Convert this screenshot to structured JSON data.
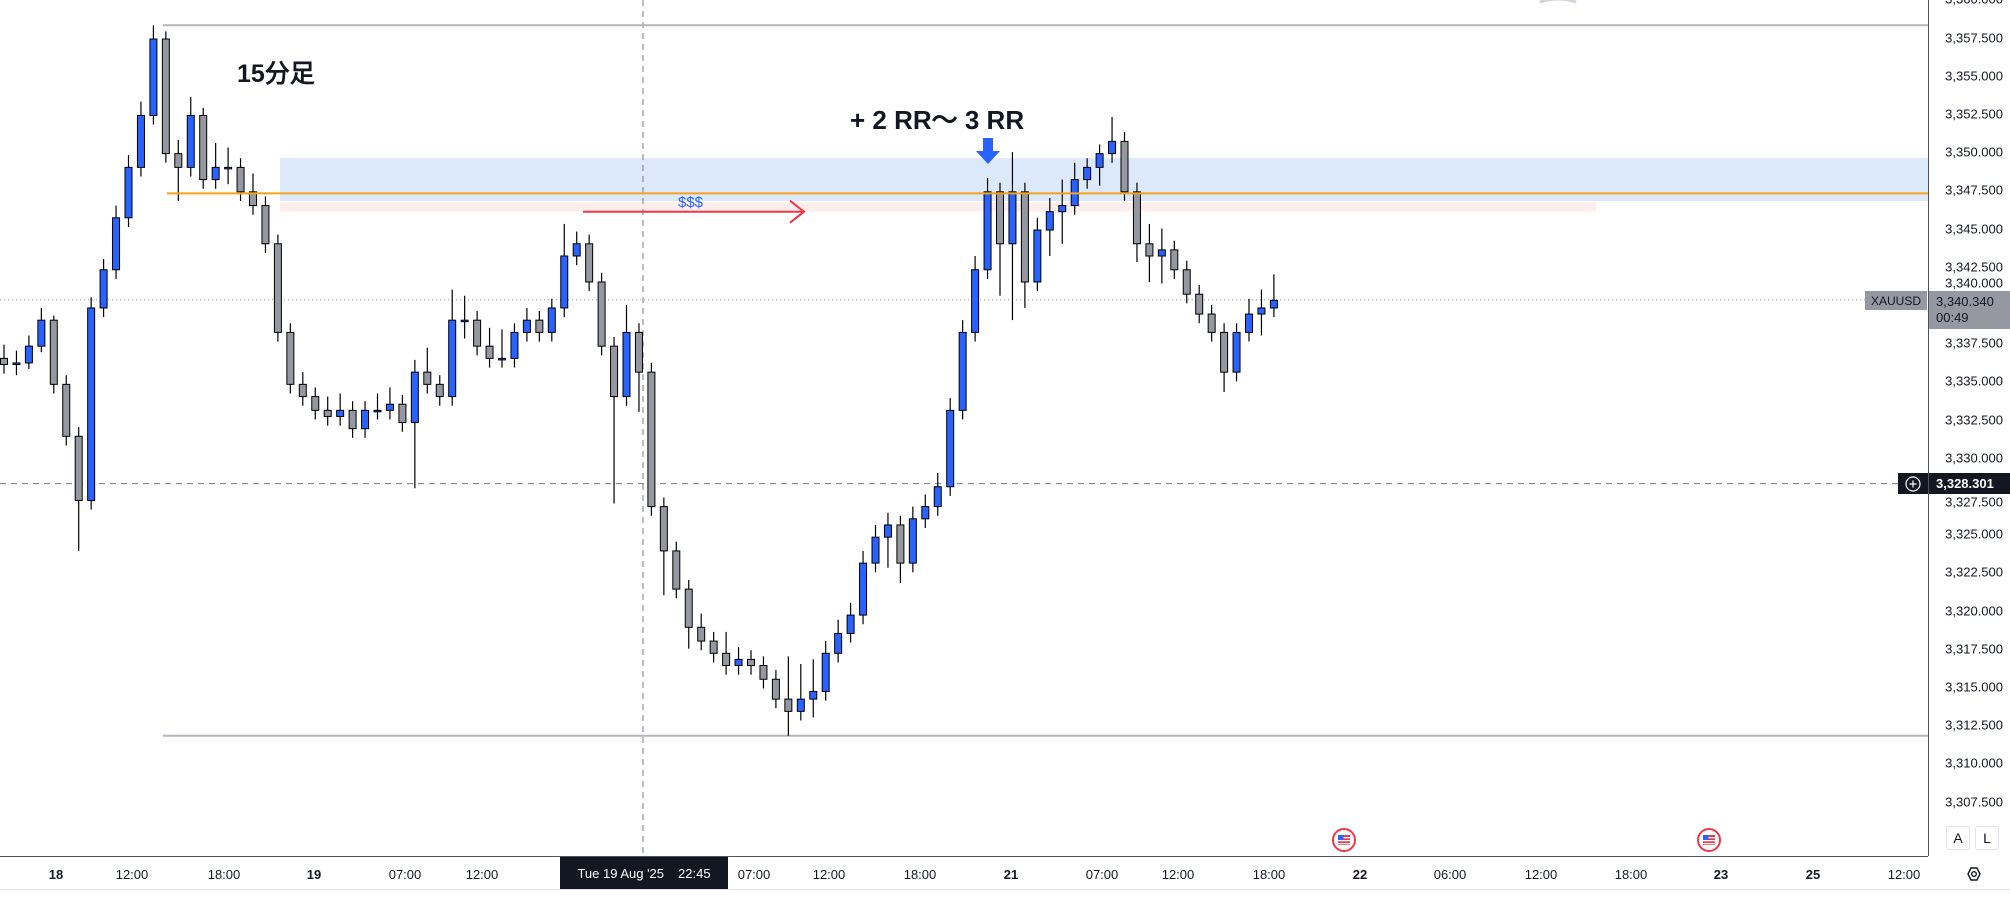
{
  "chart_data": {
    "type": "candlestick",
    "symbol": "XAUUSD",
    "timeframe_label": "15分足",
    "ylim": [
      3306,
      3360
    ],
    "y_ticks": [
      "3,360.000",
      "3,357.500",
      "3,355.000",
      "3,352.500",
      "3,350.000",
      "3,347.500",
      "3,345.000",
      "3,342.500",
      "3,340.000",
      "3,337.500",
      "3,335.000",
      "3,332.500",
      "3,330.000",
      "3,327.500",
      "3,325.000",
      "3,322.500",
      "3,320.000",
      "3,317.500",
      "3,315.000",
      "3,312.500",
      "3,310.000",
      "3,307.500"
    ],
    "x_ticks": [
      {
        "label": "18",
        "day": true
      },
      {
        "label": "12:00"
      },
      {
        "label": "18:00"
      },
      {
        "label": "19",
        "day": true
      },
      {
        "label": "07:00"
      },
      {
        "label": "12:00"
      },
      {
        "label": "07:00"
      },
      {
        "label": "12:00"
      },
      {
        "label": "18:00"
      },
      {
        "label": "21",
        "day": true
      },
      {
        "label": "07:00"
      },
      {
        "label": "12:00"
      },
      {
        "label": "18:00"
      },
      {
        "label": "22",
        "day": true
      },
      {
        "label": "06:00"
      },
      {
        "label": "12:00"
      },
      {
        "label": "18:00"
      },
      {
        "label": "23",
        "day": true
      },
      {
        "label": "25",
        "day": true
      },
      {
        "label": "12:00"
      }
    ],
    "up_color": "#2962ff",
    "down_color": "#9598a1",
    "candles_ohlc": [
      [
        3336.5,
        3337.4,
        3335.5,
        3336.1
      ],
      [
        3336.1,
        3337.0,
        3335.4,
        3336.2
      ],
      [
        3336.2,
        3338.0,
        3335.8,
        3337.3
      ],
      [
        3337.3,
        3339.8,
        3336.9,
        3339.0
      ],
      [
        3339.0,
        3339.3,
        3334.2,
        3334.8
      ],
      [
        3334.8,
        3335.4,
        3330.8,
        3331.4
      ],
      [
        3331.4,
        3332.0,
        3323.9,
        3327.2
      ],
      [
        3327.2,
        3340.5,
        3326.6,
        3339.8
      ],
      [
        3339.8,
        3343.0,
        3339.2,
        3342.3
      ],
      [
        3342.3,
        3346.5,
        3341.7,
        3345.7
      ],
      [
        3345.7,
        3349.8,
        3345.1,
        3349.0
      ],
      [
        3349.0,
        3353.3,
        3348.4,
        3352.4
      ],
      [
        3352.4,
        3358.3,
        3351.8,
        3357.4
      ],
      [
        3357.4,
        3357.9,
        3349.3,
        3349.9
      ],
      [
        3349.9,
        3350.8,
        3346.8,
        3349.0
      ],
      [
        3349.0,
        3353.6,
        3348.4,
        3352.4
      ],
      [
        3352.4,
        3352.9,
        3347.6,
        3348.2
      ],
      [
        3348.2,
        3350.6,
        3347.6,
        3349.0
      ],
      [
        3349.0,
        3350.3,
        3347.9,
        3349.0
      ],
      [
        3349.0,
        3349.6,
        3346.8,
        3347.4
      ],
      [
        3347.4,
        3348.6,
        3345.9,
        3346.5
      ],
      [
        3346.5,
        3347.1,
        3343.4,
        3344.0
      ],
      [
        3344.0,
        3344.6,
        3337.6,
        3338.2
      ],
      [
        3338.2,
        3338.8,
        3334.2,
        3334.8
      ],
      [
        3334.8,
        3335.6,
        3333.4,
        3334.0
      ],
      [
        3334.0,
        3334.6,
        3332.5,
        3333.1
      ],
      [
        3333.1,
        3334.0,
        3332.1,
        3332.7
      ],
      [
        3332.7,
        3334.2,
        3332.1,
        3333.1
      ],
      [
        3333.1,
        3333.7,
        3331.3,
        3331.9
      ],
      [
        3331.9,
        3333.7,
        3331.3,
        3333.1
      ],
      [
        3333.1,
        3334.2,
        3332.5,
        3333.1
      ],
      [
        3333.1,
        3334.6,
        3332.5,
        3333.5
      ],
      [
        3333.5,
        3334.1,
        3331.7,
        3332.3
      ],
      [
        3332.3,
        3336.4,
        3328.0,
        3335.6
      ],
      [
        3335.6,
        3337.2,
        3334.2,
        3334.8
      ],
      [
        3334.8,
        3335.4,
        3333.4,
        3334.0
      ],
      [
        3334.0,
        3341.0,
        3333.4,
        3339.0
      ],
      [
        3339.0,
        3340.6,
        3337.8,
        3339.0
      ],
      [
        3339.0,
        3339.6,
        3336.7,
        3337.3
      ],
      [
        3337.3,
        3338.5,
        3335.9,
        3336.5
      ],
      [
        3336.5,
        3338.4,
        3335.9,
        3336.5
      ],
      [
        3336.5,
        3338.8,
        3335.9,
        3338.2
      ],
      [
        3338.2,
        3339.8,
        3337.6,
        3339.0
      ],
      [
        3339.0,
        3339.6,
        3337.6,
        3338.2
      ],
      [
        3338.2,
        3340.4,
        3337.6,
        3339.8
      ],
      [
        3339.8,
        3345.3,
        3339.2,
        3343.2
      ],
      [
        3343.2,
        3344.8,
        3342.6,
        3344.0
      ],
      [
        3344.0,
        3344.6,
        3340.9,
        3341.5
      ],
      [
        3341.5,
        3342.1,
        3336.7,
        3337.3
      ],
      [
        3337.3,
        3337.9,
        3327.0,
        3334.0
      ],
      [
        3334.0,
        3340.0,
        3333.4,
        3338.2
      ],
      [
        3338.2,
        3338.8,
        3333.0,
        3335.6
      ],
      [
        3335.6,
        3336.2,
        3326.2,
        3326.8
      ],
      [
        3326.8,
        3327.4,
        3321.0,
        3323.9
      ],
      [
        3323.9,
        3324.5,
        3320.8,
        3321.4
      ],
      [
        3321.4,
        3322.0,
        3317.5,
        3318.9
      ],
      [
        3318.9,
        3319.8,
        3317.4,
        3318.0
      ],
      [
        3318.0,
        3318.6,
        3316.6,
        3317.2
      ],
      [
        3317.2,
        3318.6,
        3315.8,
        3316.4
      ],
      [
        3316.4,
        3317.6,
        3315.8,
        3316.8
      ],
      [
        3316.8,
        3317.4,
        3315.8,
        3316.4
      ],
      [
        3316.4,
        3317.0,
        3314.9,
        3315.5
      ],
      [
        3315.5,
        3316.1,
        3313.6,
        3314.2
      ],
      [
        3314.2,
        3317.0,
        3311.8,
        3313.4
      ],
      [
        3313.4,
        3316.5,
        3312.8,
        3314.2
      ],
      [
        3314.2,
        3316.8,
        3313.0,
        3314.7
      ],
      [
        3314.7,
        3318.0,
        3314.1,
        3317.2
      ],
      [
        3317.2,
        3319.4,
        3316.6,
        3318.5
      ],
      [
        3318.5,
        3320.5,
        3317.9,
        3319.7
      ],
      [
        3319.7,
        3323.9,
        3319.1,
        3323.1
      ],
      [
        3323.1,
        3325.6,
        3322.5,
        3324.8
      ],
      [
        3324.8,
        3326.4,
        3322.8,
        3325.6
      ],
      [
        3325.6,
        3326.2,
        3321.8,
        3323.1
      ],
      [
        3323.1,
        3326.8,
        3322.5,
        3326.0
      ],
      [
        3326.0,
        3327.6,
        3325.4,
        3326.8
      ],
      [
        3326.8,
        3329.0,
        3326.2,
        3328.1
      ],
      [
        3328.1,
        3333.9,
        3327.5,
        3333.1
      ],
      [
        3333.1,
        3339.0,
        3332.5,
        3338.2
      ],
      [
        3338.2,
        3343.2,
        3337.6,
        3342.3
      ],
      [
        3342.3,
        3348.3,
        3341.7,
        3347.4
      ],
      [
        3347.4,
        3348.0,
        3340.6,
        3344.0
      ],
      [
        3344.0,
        3350.0,
        3339.0,
        3347.4
      ],
      [
        3347.4,
        3348.0,
        3339.8,
        3341.5
      ],
      [
        3341.5,
        3345.7,
        3340.9,
        3344.9
      ],
      [
        3344.9,
        3347.0,
        3343.2,
        3346.1
      ],
      [
        3346.1,
        3348.2,
        3344.0,
        3346.5
      ],
      [
        3346.5,
        3349.3,
        3345.9,
        3348.2
      ],
      [
        3348.2,
        3349.6,
        3347.6,
        3349.0
      ],
      [
        3349.0,
        3350.5,
        3347.8,
        3349.9
      ],
      [
        3349.9,
        3352.3,
        3349.3,
        3350.7
      ],
      [
        3350.7,
        3351.3,
        3346.8,
        3347.4
      ],
      [
        3347.4,
        3348.0,
        3342.8,
        3344.0
      ],
      [
        3344.0,
        3345.3,
        3341.5,
        3343.2
      ],
      [
        3343.2,
        3345.0,
        3341.4,
        3343.6
      ],
      [
        3343.6,
        3344.2,
        3341.7,
        3342.3
      ],
      [
        3342.3,
        3342.9,
        3340.1,
        3340.7
      ],
      [
        3340.7,
        3341.3,
        3338.8,
        3339.4
      ],
      [
        3339.4,
        3340.0,
        3337.6,
        3338.2
      ],
      [
        3338.2,
        3338.8,
        3334.3,
        3335.6
      ],
      [
        3335.6,
        3338.8,
        3335.0,
        3338.2
      ],
      [
        3338.2,
        3340.4,
        3337.6,
        3339.4
      ],
      [
        3339.4,
        3341.0,
        3338.0,
        3339.8
      ],
      [
        3339.8,
        3342.0,
        3339.2,
        3340.3
      ]
    ],
    "drawings": {
      "high_line_price": 3358.3,
      "low_line_price": 3311.8,
      "zone_top": 3349.6,
      "zone_bottom": 3346.8,
      "orange_line_price": 3347.3,
      "pink_zone_top": 3346.7,
      "pink_zone_bottom": 3346.1,
      "liquidity_arrow_price": 3346.1,
      "zone_color": "#dbe9fb",
      "orange_color": "#f7a21b",
      "pink_color": "#fdeeee",
      "arrow_color": "#f23645"
    },
    "annotations": {
      "timeframe": "15分足",
      "target": "+ 2 RR～ 3 RR",
      "liquidity": "$$$"
    }
  },
  "price_axis": {
    "symbol_label": "XAUUSD",
    "last_price": "3,340.340",
    "countdown": "00:49",
    "crosshair_price": "3,328.301",
    "auto_button": "A",
    "log_button": "L"
  },
  "time_axis": {
    "crosshair_date": "Tue 19 Aug '25",
    "crosshair_time": "22:45"
  },
  "icons": {
    "event_flag": "us-flag-icon",
    "settings": "settings-icon",
    "plus": "plus-circle-icon"
  }
}
